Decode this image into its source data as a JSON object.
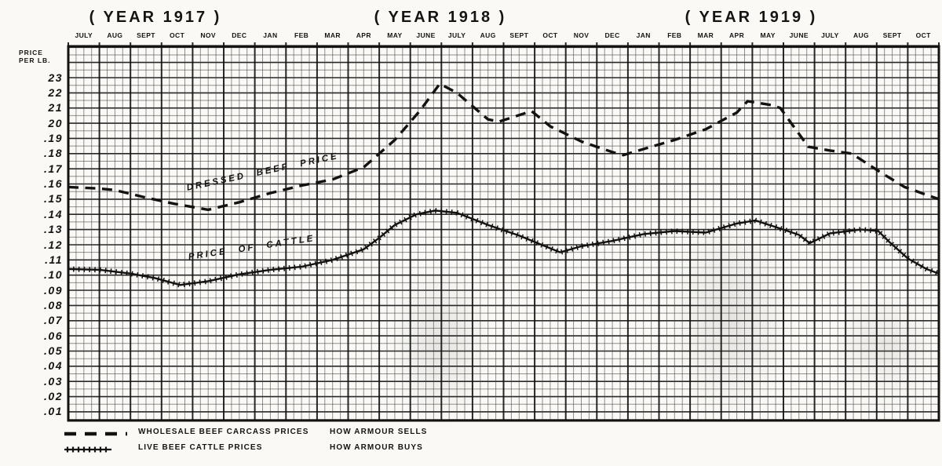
{
  "page": {
    "paper_color": "#faf9f5",
    "ink_color": "#141210",
    "grid_minor_color": "#3a3a3a",
    "grid_major_color": "#111111"
  },
  "header": {
    "year_labels": [
      "( YEAR 1917 )",
      "( YEAR 1918 )",
      "( YEAR 1919 )"
    ]
  },
  "y_axis": {
    "title_line1": "PRICE",
    "title_line2": "PER LB.",
    "tick_labels": [
      "23",
      "22",
      "21",
      "20",
      ".19",
      ".18",
      ".17",
      ".16",
      ".15",
      ".14",
      ".13",
      ".12",
      ".11",
      ".10",
      ".09",
      ".08",
      ".07",
      ".06",
      ".05",
      ".04",
      ".03",
      ".02",
      ".01"
    ]
  },
  "chart_data": {
    "type": "line",
    "x_unit": "month index from July 1917 (0 = left edge of plot; center of month i = i + 0.5)",
    "x_months": [
      "JULY",
      "AUG",
      "SEPT",
      "OCT",
      "NOV",
      "DEC",
      "JAN",
      "FEB",
      "MAR",
      "APR",
      "MAY",
      "JUNE",
      "JULY",
      "AUG",
      "SEPT",
      "OCT",
      "NOV",
      "DEC",
      "JAN",
      "FEB",
      "MAR",
      "APR",
      "MAY",
      "JUNE",
      "JULY",
      "AUG",
      "SEPT",
      "OCT"
    ],
    "ylim": [
      0.004,
      0.251
    ],
    "y_tick_values": [
      0.23,
      0.22,
      0.21,
      0.2,
      0.19,
      0.18,
      0.17,
      0.16,
      0.15,
      0.14,
      0.13,
      0.12,
      0.11,
      0.1,
      0.09,
      0.08,
      0.07,
      0.06,
      0.05,
      0.04,
      0.03,
      0.02,
      0.01
    ],
    "grid": "half-cent horizontal rows, quarter-month vertical columns, heavy lines at cents and month boundaries",
    "series": [
      {
        "name": "WHOLESALE BEEF CARCASS PRICES",
        "label_in_chart": "DRESSED BEEF PRICE",
        "style": "dashed",
        "points": [
          [
            0,
            0.158
          ],
          [
            1.0,
            0.157
          ],
          [
            1.5,
            0.156
          ],
          [
            2.5,
            0.151
          ],
          [
            3.4,
            0.147
          ],
          [
            4.5,
            0.143
          ],
          [
            5.5,
            0.148
          ],
          [
            6.5,
            0.154
          ],
          [
            7.5,
            0.159
          ],
          [
            8.5,
            0.163
          ],
          [
            9.5,
            0.171
          ],
          [
            10.5,
            0.189
          ],
          [
            11.3,
            0.208
          ],
          [
            11.95,
            0.226
          ],
          [
            12.5,
            0.22
          ],
          [
            13.5,
            0.2025
          ],
          [
            13.85,
            0.201
          ],
          [
            14.9,
            0.208
          ],
          [
            15.5,
            0.198
          ],
          [
            16.5,
            0.188
          ],
          [
            17.5,
            0.181
          ],
          [
            17.85,
            0.179
          ],
          [
            18.5,
            0.183
          ],
          [
            19.5,
            0.189
          ],
          [
            20.5,
            0.196
          ],
          [
            21.5,
            0.207
          ],
          [
            21.85,
            0.2145
          ],
          [
            22.6,
            0.212
          ],
          [
            22.9,
            0.21
          ],
          [
            23.8,
            0.1845
          ],
          [
            24.5,
            0.182
          ],
          [
            25.2,
            0.18
          ],
          [
            26.1,
            0.168
          ],
          [
            26.9,
            0.158
          ],
          [
            28,
            0.15
          ]
        ]
      },
      {
        "name": "LIVE BEEF CATTLE PRICES",
        "label_in_chart": "PRICE OF CATTLE",
        "style": "solid-crosshatch",
        "points": [
          [
            0,
            0.104
          ],
          [
            1.0,
            0.1035
          ],
          [
            2.0,
            0.101
          ],
          [
            2.8,
            0.098
          ],
          [
            3.6,
            0.0935
          ],
          [
            4.5,
            0.096
          ],
          [
            5.5,
            0.1005
          ],
          [
            6.5,
            0.1035
          ],
          [
            7.5,
            0.1055
          ],
          [
            8.5,
            0.11
          ],
          [
            9.5,
            0.117
          ],
          [
            10.0,
            0.1245
          ],
          [
            10.5,
            0.133
          ],
          [
            11.2,
            0.14
          ],
          [
            11.8,
            0.1425
          ],
          [
            12.5,
            0.141
          ],
          [
            13.5,
            0.133
          ],
          [
            14.5,
            0.126
          ],
          [
            15.4,
            0.1185
          ],
          [
            15.82,
            0.115
          ],
          [
            16.5,
            0.119
          ],
          [
            17.5,
            0.1225
          ],
          [
            18.5,
            0.127
          ],
          [
            19.5,
            0.129
          ],
          [
            20.5,
            0.128
          ],
          [
            21.5,
            0.134
          ],
          [
            22.1,
            0.136
          ],
          [
            23.0,
            0.13
          ],
          [
            23.5,
            0.1265
          ],
          [
            23.85,
            0.121
          ],
          [
            24.5,
            0.1275
          ],
          [
            25.5,
            0.13
          ],
          [
            26.05,
            0.129
          ],
          [
            26.4,
            0.122
          ],
          [
            27.0,
            0.111
          ],
          [
            27.6,
            0.104
          ],
          [
            28,
            0.101
          ]
        ]
      }
    ]
  },
  "legend": {
    "rows": [
      {
        "symbol": "dashed-line",
        "label": "WHOLESALE BEEF CARCASS PRICES",
        "note": "HOW ARMOUR SELLS"
      },
      {
        "symbol": "crosshatch-line",
        "label": "LIVE BEEF CATTLE PRICES",
        "note": "HOW ARMOUR BUYS"
      }
    ]
  }
}
